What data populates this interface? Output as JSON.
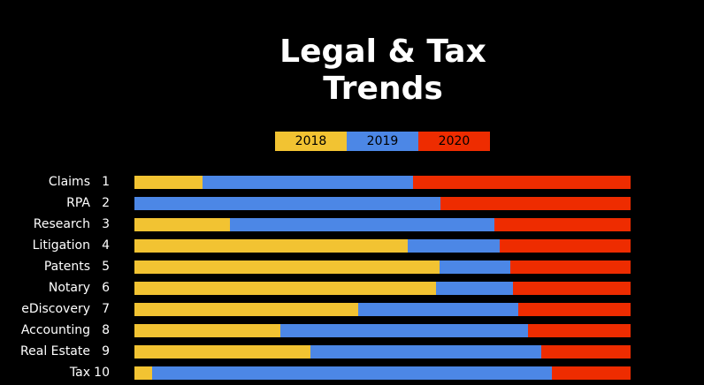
{
  "chart_data": {
    "type": "bar",
    "orientation": "horizontal",
    "stacked": "100%",
    "title": "Legal & Tax Trends",
    "title_lines": [
      "Legal & Tax",
      "Trends"
    ],
    "legend_placement": "top",
    "grid": false,
    "categories": [
      "Claims",
      "RPA",
      "Research",
      "Litigation",
      "Patents",
      "Notary",
      "eDiscovery",
      "Accounting",
      "Real Estate",
      "Tax"
    ],
    "ranks": [
      "1",
      "2",
      "3",
      "4",
      "5",
      "6",
      "7",
      "8",
      "9",
      "10"
    ],
    "series": [
      {
        "name": "2018",
        "color": "#F2C332",
        "values": [
          13.7,
          0,
          19.3,
          55.1,
          61.5,
          60.8,
          45.1,
          29.4,
          35.5,
          3.6
        ]
      },
      {
        "name": "2019",
        "color": "#4C87E6",
        "values": [
          42.4,
          61.7,
          53.3,
          18.5,
          14.3,
          15.5,
          32.3,
          49.9,
          46.5,
          80.6
        ]
      },
      {
        "name": "2020",
        "color": "#EE2C00",
        "values": [
          43.9,
          38.3,
          27.4,
          26.4,
          24.2,
          23.7,
          22.6,
          20.7,
          18.0,
          15.8
        ]
      }
    ]
  }
}
